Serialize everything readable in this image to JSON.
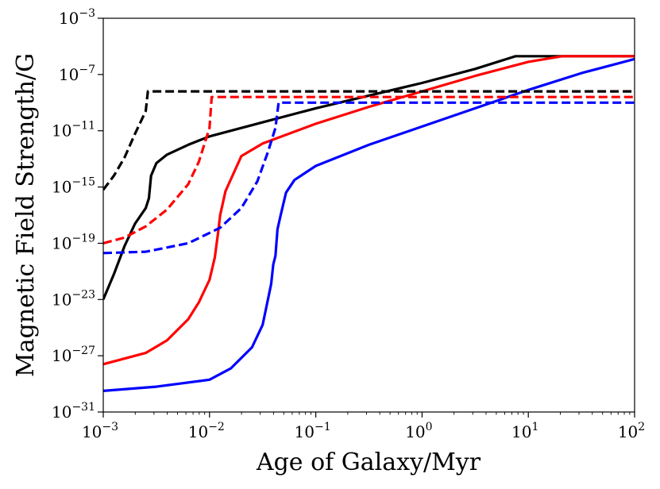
{
  "chart_data": {
    "type": "line",
    "title": "",
    "xlabel": "Age of Galaxy/Myr",
    "ylabel": "Magnetic Field Strength/G",
    "xscale": "log",
    "yscale": "log",
    "xlim_log10": [
      -3,
      2
    ],
    "ylim_log10": [
      -31,
      -3
    ],
    "grid": false,
    "legend": "none",
    "x_ticks": [
      {
        "base": "10",
        "exp": "−3",
        "log10": -3
      },
      {
        "base": "10",
        "exp": "−2",
        "log10": -2
      },
      {
        "base": "10",
        "exp": "−1",
        "log10": -1
      },
      {
        "base": "10",
        "exp": "0",
        "log10": 0
      },
      {
        "base": "10",
        "exp": "1",
        "log10": 1
      },
      {
        "base": "10",
        "exp": "2",
        "log10": 2
      }
    ],
    "y_ticks": [
      {
        "base": "10",
        "exp": "−3",
        "log10": -3
      },
      {
        "base": "10",
        "exp": "−7",
        "log10": -7
      },
      {
        "base": "10",
        "exp": "−11",
        "log10": -11
      },
      {
        "base": "10",
        "exp": "−15",
        "log10": -15
      },
      {
        "base": "10",
        "exp": "−19",
        "log10": -19
      },
      {
        "base": "10",
        "exp": "−23",
        "log10": -23
      },
      {
        "base": "10",
        "exp": "−27",
        "log10": -27
      },
      {
        "base": "10",
        "exp": "−31",
        "log10": -31
      }
    ],
    "series": [
      {
        "name": "black-solid",
        "color": "#000000",
        "style": "solid",
        "points_log10": [
          [
            -3,
            -23.0
          ],
          [
            -2.9,
            -21.2
          ],
          [
            -2.8,
            -19.2
          ],
          [
            -2.7,
            -17.6
          ],
          [
            -2.6,
            -16.5
          ],
          [
            -2.57,
            -15.8
          ],
          [
            -2.55,
            -14.2
          ],
          [
            -2.5,
            -13.3
          ],
          [
            -2.4,
            -12.7
          ],
          [
            -2.2,
            -12.0
          ],
          [
            -2.0,
            -11.4
          ],
          [
            -1.5,
            -10.4
          ],
          [
            -1.0,
            -9.4
          ],
          [
            -0.5,
            -8.5
          ],
          [
            0.0,
            -7.6
          ],
          [
            0.5,
            -6.6
          ],
          [
            0.88,
            -5.7
          ],
          [
            1.0,
            -5.7
          ],
          [
            2.0,
            -5.7
          ]
        ]
      },
      {
        "name": "red-solid",
        "color": "#ff0000",
        "style": "solid",
        "points_log10": [
          [
            -3,
            -27.6
          ],
          [
            -2.6,
            -26.8
          ],
          [
            -2.4,
            -25.9
          ],
          [
            -2.2,
            -24.4
          ],
          [
            -2.1,
            -23.2
          ],
          [
            -2.0,
            -21.6
          ],
          [
            -1.95,
            -20.0
          ],
          [
            -1.92,
            -18.3
          ],
          [
            -1.9,
            -17.0
          ],
          [
            -1.85,
            -15.3
          ],
          [
            -1.7,
            -12.8
          ],
          [
            -1.5,
            -11.9
          ],
          [
            -1.0,
            -10.5
          ],
          [
            -0.5,
            -9.3
          ],
          [
            0.0,
            -8.2
          ],
          [
            0.5,
            -7.1
          ],
          [
            1.0,
            -6.1
          ],
          [
            1.32,
            -5.7
          ],
          [
            2.0,
            -5.7
          ]
        ]
      },
      {
        "name": "blue-solid",
        "color": "#0000ff",
        "style": "solid",
        "points_log10": [
          [
            -3,
            -29.5
          ],
          [
            -2.5,
            -29.2
          ],
          [
            -2.0,
            -28.7
          ],
          [
            -1.8,
            -27.9
          ],
          [
            -1.6,
            -26.4
          ],
          [
            -1.5,
            -24.8
          ],
          [
            -1.42,
            -21.9
          ],
          [
            -1.4,
            -20.5
          ],
          [
            -1.38,
            -19.9
          ],
          [
            -1.36,
            -18.0
          ],
          [
            -1.33,
            -17.0
          ],
          [
            -1.28,
            -15.4
          ],
          [
            -1.2,
            -14.5
          ],
          [
            -1.0,
            -13.5
          ],
          [
            -0.5,
            -12.0
          ],
          [
            0.0,
            -10.7
          ],
          [
            0.5,
            -9.4
          ],
          [
            1.0,
            -8.1
          ],
          [
            1.5,
            -6.9
          ],
          [
            2.0,
            -5.9
          ]
        ]
      },
      {
        "name": "black-dashed",
        "color": "#000000",
        "style": "dashed",
        "points_log10": [
          [
            -3,
            -15.2
          ],
          [
            -2.9,
            -14.2
          ],
          [
            -2.8,
            -12.9
          ],
          [
            -2.7,
            -11.2
          ],
          [
            -2.6,
            -9.6
          ],
          [
            -2.58,
            -8.2
          ],
          [
            2.0,
            -8.2
          ]
        ]
      },
      {
        "name": "red-dashed",
        "color": "#ff0000",
        "style": "dashed",
        "points_log10": [
          [
            -3,
            -19.0
          ],
          [
            -2.8,
            -18.6
          ],
          [
            -2.6,
            -17.8
          ],
          [
            -2.4,
            -16.6
          ],
          [
            -2.2,
            -14.8
          ],
          [
            -2.1,
            -13.2
          ],
          [
            -2.0,
            -10.8
          ],
          [
            -1.98,
            -8.6
          ],
          [
            2.0,
            -8.6
          ]
        ]
      },
      {
        "name": "blue-dashed",
        "color": "#0000ff",
        "style": "dashed",
        "points_log10": [
          [
            -3,
            -19.7
          ],
          [
            -2.6,
            -19.6
          ],
          [
            -2.2,
            -19.0
          ],
          [
            -1.9,
            -17.9
          ],
          [
            -1.7,
            -16.5
          ],
          [
            -1.55,
            -14.6
          ],
          [
            -1.45,
            -12.5
          ],
          [
            -1.38,
            -10.8
          ],
          [
            -1.35,
            -9.0
          ],
          [
            2.0,
            -9.0
          ]
        ]
      }
    ]
  }
}
